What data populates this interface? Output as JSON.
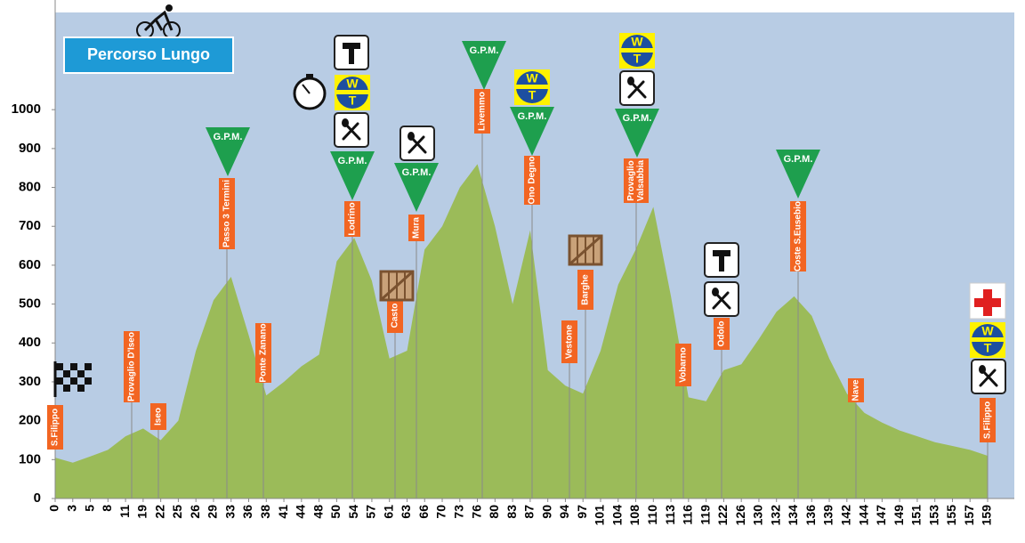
{
  "chart_data": {
    "type": "area",
    "title": "Percorso Lungo",
    "categories": [
      "0",
      "3",
      "5",
      "8",
      "11",
      "19",
      "22",
      "25",
      "26",
      "29",
      "33",
      "36",
      "38",
      "41",
      "44",
      "48",
      "50",
      "54",
      "57",
      "61",
      "63",
      "66",
      "70",
      "73",
      "76",
      "80",
      "83",
      "87",
      "90",
      "94",
      "97",
      "101",
      "104",
      "108",
      "110",
      "113",
      "116",
      "119",
      "122",
      "126",
      "130",
      "132",
      "134",
      "136",
      "139",
      "142",
      "144",
      "147",
      "149",
      "151",
      "153",
      "155",
      "157",
      "159"
    ],
    "values": [
      105,
      92,
      108,
      125,
      160,
      180,
      150,
      200,
      380,
      510,
      570,
      420,
      265,
      300,
      340,
      370,
      610,
      670,
      560,
      360,
      380,
      640,
      700,
      800,
      860,
      700,
      500,
      690,
      330,
      290,
      270,
      380,
      550,
      640,
      750,
      520,
      260,
      250,
      330,
      345,
      410,
      480,
      520,
      470,
      360,
      270,
      220,
      195,
      175,
      160,
      145,
      135,
      125,
      110
    ],
    "color": "#9bbb59",
    "background": "#b8cce4",
    "ylim": [
      0,
      1250
    ],
    "yticks": [
      0,
      100,
      200,
      300,
      400,
      500,
      600,
      700,
      800,
      900,
      1000
    ],
    "places": [
      [
        "S.Filippo"
      ],
      [
        "Provaglio D'Iseo"
      ],
      [
        "Iseo"
      ],
      [
        "Passo 3 Termini"
      ],
      [
        "Ponte Zanano"
      ],
      [
        "Lodrino"
      ],
      [
        "Casto"
      ],
      [
        "Mura"
      ],
      [
        "Livemmo"
      ],
      [
        "Ono Degno"
      ],
      [
        "Vestone"
      ],
      [
        "Barghe"
      ],
      [
        "Provaglio",
        "Valsabbia"
      ],
      [
        "Vobarno"
      ],
      [
        "Odolo"
      ],
      [
        "Coste S.Eusebio"
      ],
      [
        "Nave"
      ],
      [
        "S.Filippo"
      ]
    ],
    "gpm_label": "G.P.M.",
    "logo_text": [
      "W",
      "T"
    ]
  }
}
